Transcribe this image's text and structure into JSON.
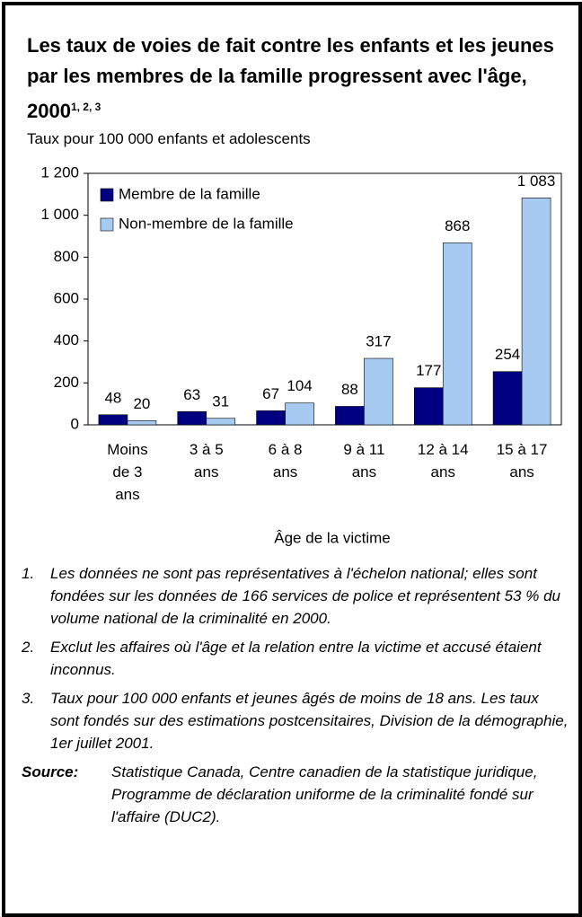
{
  "chart_data": {
    "type": "bar",
    "title": "Les taux de voies de fait contre les enfants et les jeunes par les membres de la famille progressent avec l'âge, 2000",
    "title_superscript": "1, 2, 3",
    "subtitle": "Taux pour 100 000 enfants et adolescents",
    "xlabel": "Âge de la victime",
    "categories": [
      "Moins de 3 ans",
      "3 à 5 ans",
      "6 à 8 ans",
      "9 à 11 ans",
      "12 à 14 ans",
      "15 à 17 ans"
    ],
    "series": [
      {
        "name": "Membre de la famille",
        "color": "#000080",
        "values": [
          48,
          63,
          67,
          88,
          177,
          254
        ]
      },
      {
        "name": "Non-membre de la famille",
        "color": "#a6caf0",
        "values": [
          20,
          31,
          104,
          317,
          868,
          1083
        ],
        "value_labels": [
          "20",
          "31",
          "104",
          "317",
          "868",
          "1 083"
        ]
      }
    ],
    "ylim": [
      0,
      1200
    ],
    "yticks": [
      0,
      200,
      400,
      600,
      800,
      {
        "value": 1000,
        "label": "1 000"
      },
      {
        "value": 1200,
        "label": "1 200"
      }
    ],
    "grid": false,
    "legend": "upper-left"
  },
  "notes": [
    {
      "marker": "1.",
      "text": "Les données ne sont pas représentatives à l'échelon national; elles sont fondées sur les données de 166 services de police et représentent 53 % du volume national de la criminalité en 2000."
    },
    {
      "marker": "2.",
      "text": "Exclut les affaires où l'âge et la relation entre la victime et accusé étaient inconnus."
    },
    {
      "marker": "3.",
      "text": "Taux pour 100 000 enfants et jeunes âgés de moins de 18 ans. Les taux sont fondés sur des estimations postcensitaires, Division de la démographie, 1er juillet 2001."
    }
  ],
  "source": {
    "label": "Source:",
    "text": "Statistique Canada, Centre canadien de la statistique juridique, Programme de déclaration uniforme de la criminalité fondé sur l'affaire (DUC2)."
  }
}
